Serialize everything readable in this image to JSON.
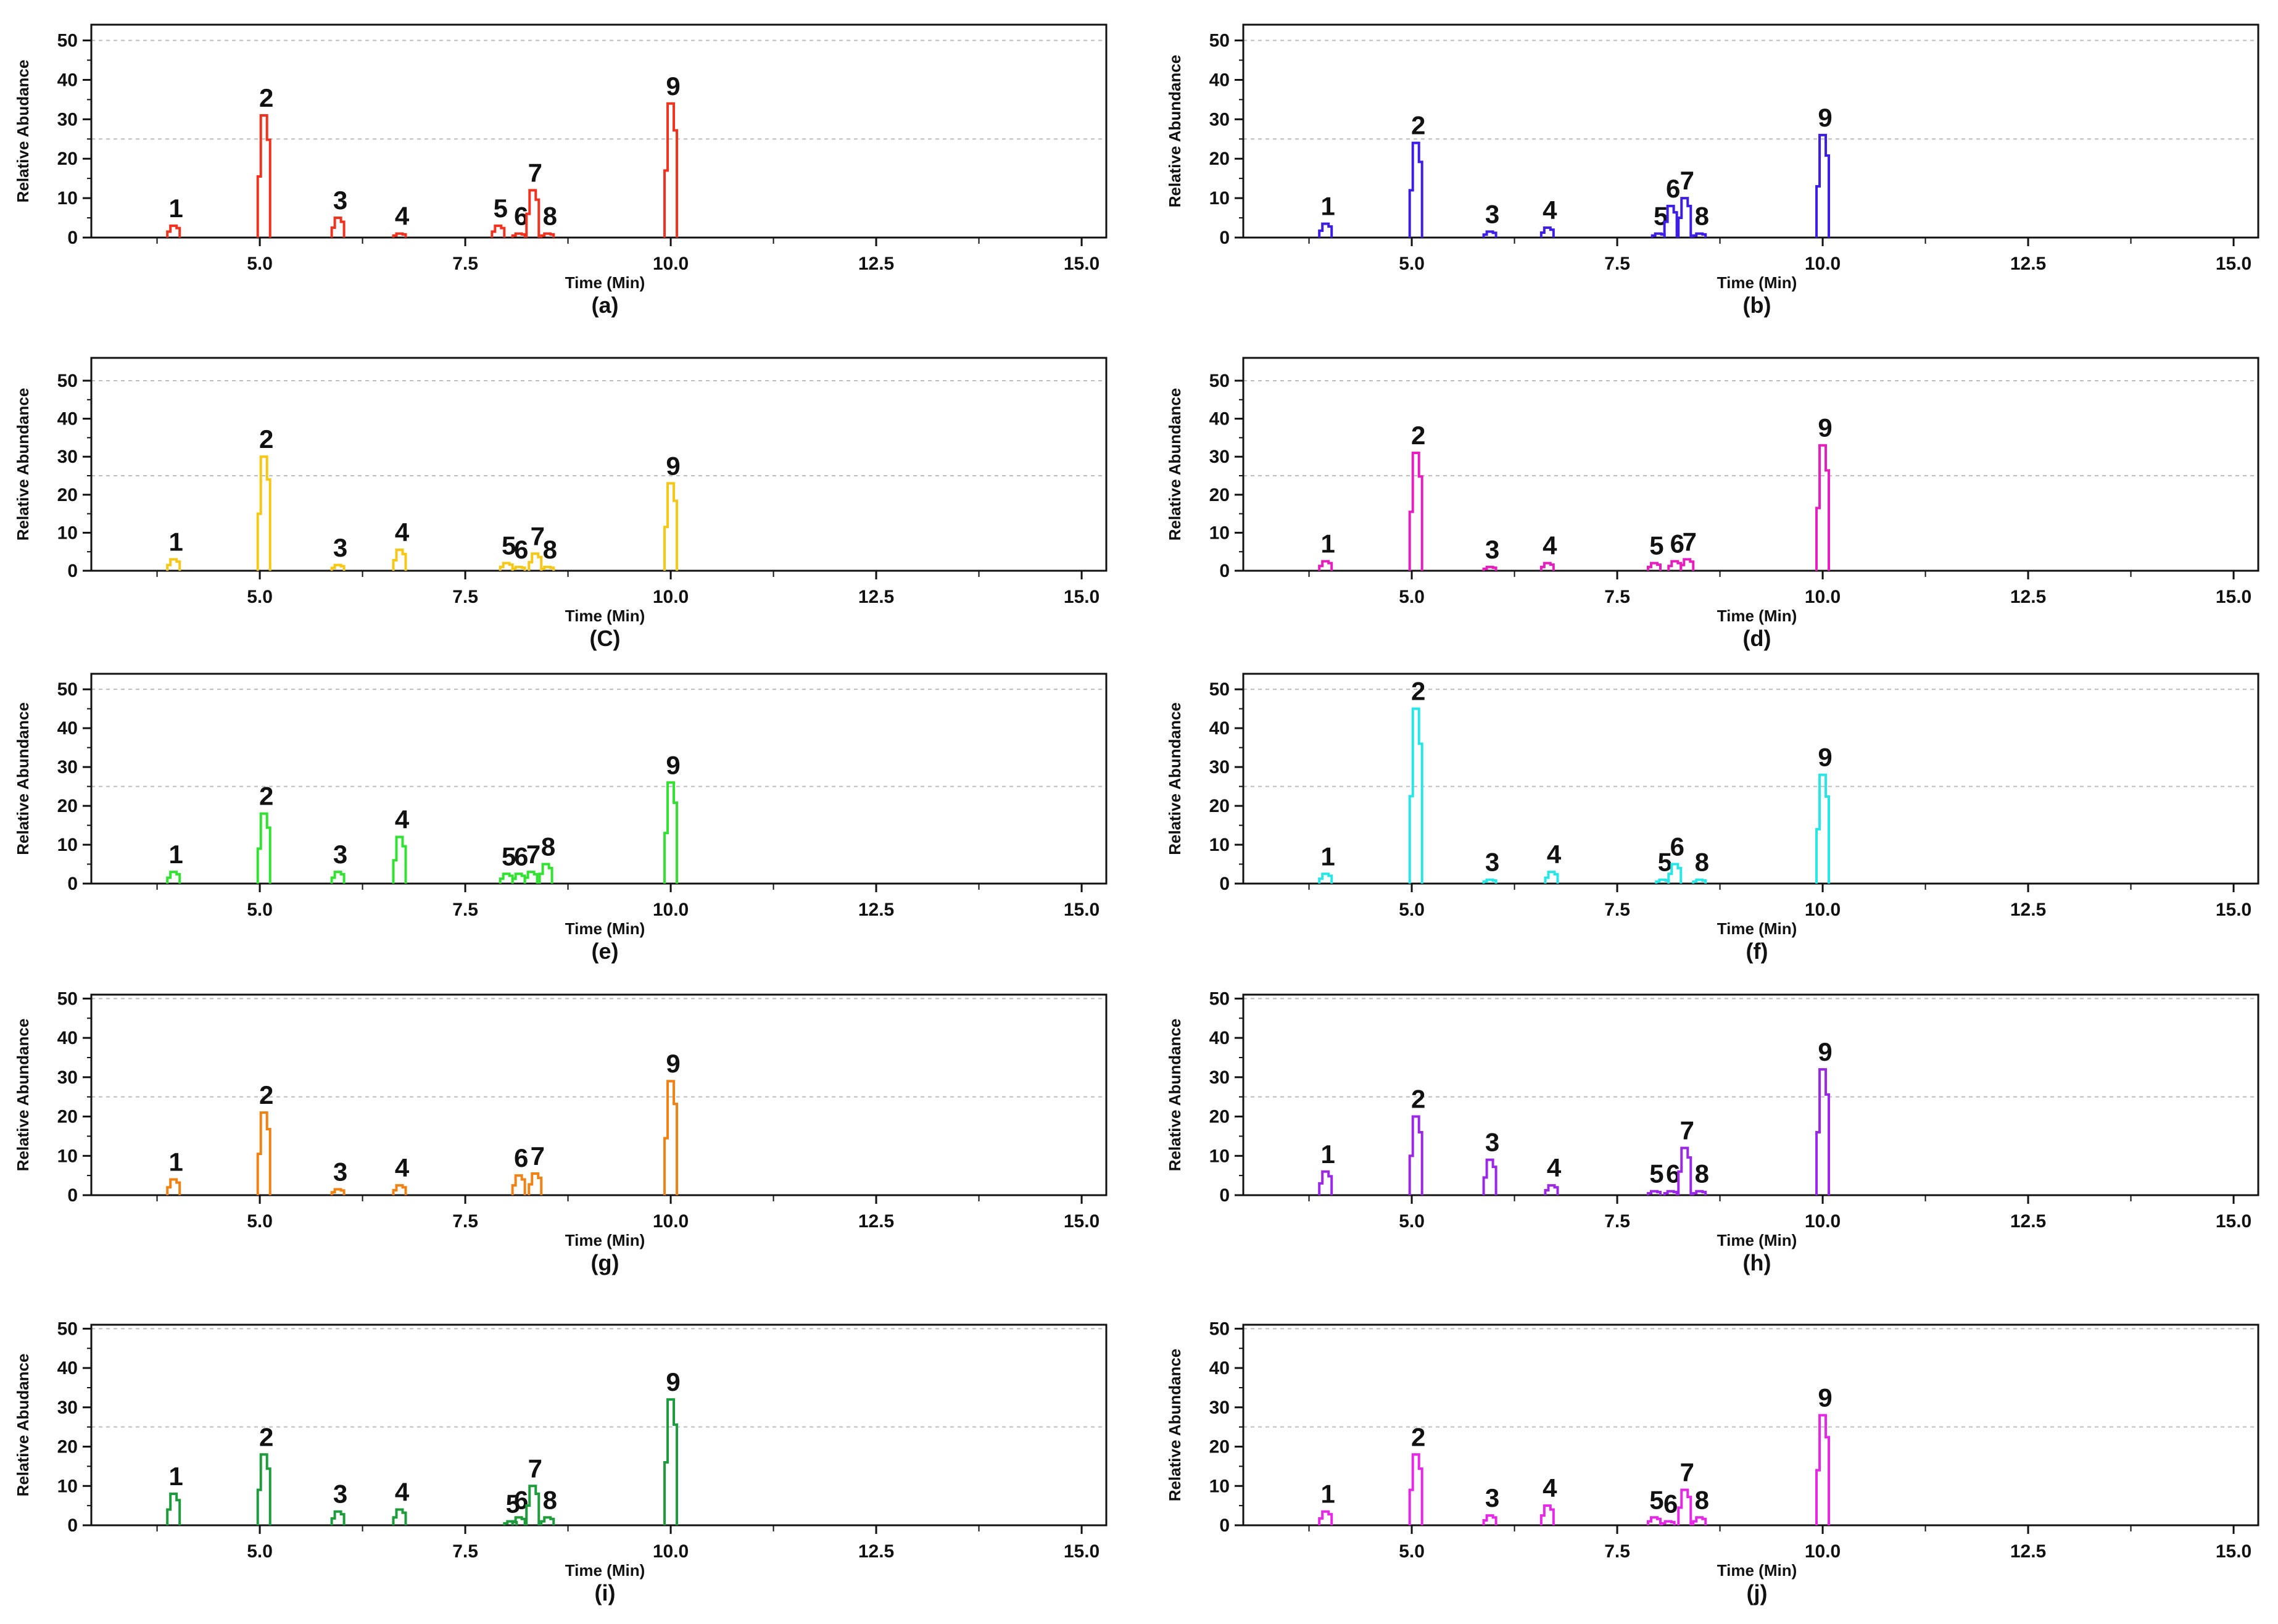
{
  "chart_data": [
    {
      "type": "line",
      "label": "(a)",
      "color": "#f0321e",
      "xlabel": "Time (Min)",
      "ylabel": "Relative Abudance",
      "xticks": [
        "5.0",
        "7.5",
        "10.0",
        "12.5",
        "15.0"
      ],
      "ylim": [
        0,
        50
      ],
      "yticks": [
        0,
        10,
        20,
        30,
        40,
        50
      ],
      "grid": [
        25,
        50
      ],
      "peaks": [
        {
          "label": "1",
          "time": 3.95,
          "value": 3
        },
        {
          "label": "2",
          "time": 5.05,
          "value": 31
        },
        {
          "label": "3",
          "time": 5.95,
          "value": 5
        },
        {
          "label": "4",
          "time": 6.7,
          "value": 1
        },
        {
          "label": "5",
          "time": 7.9,
          "value": 3
        },
        {
          "label": "6",
          "time": 8.15,
          "value": 1
        },
        {
          "label": "7",
          "time": 8.32,
          "value": 12
        },
        {
          "label": "8",
          "time": 8.5,
          "value": 1
        },
        {
          "label": "9",
          "time": 10.0,
          "value": 34
        }
      ]
    },
    {
      "type": "line",
      "label": "(b)",
      "color": "#3c1ee6",
      "xlabel": "Time (Min)",
      "ylabel": "Relative Abundance",
      "xticks": [
        "5.0",
        "7.5",
        "10.0",
        "12.5",
        "15.0"
      ],
      "ylim": [
        0,
        50
      ],
      "yticks": [
        0,
        10,
        20,
        30,
        40,
        50
      ],
      "grid": [
        25,
        50
      ],
      "peaks": [
        {
          "label": "1",
          "time": 3.95,
          "value": 3.5
        },
        {
          "label": "2",
          "time": 5.05,
          "value": 24
        },
        {
          "label": "3",
          "time": 5.95,
          "value": 1.5
        },
        {
          "label": "4",
          "time": 6.65,
          "value": 2.5
        },
        {
          "label": "5",
          "time": 8.0,
          "value": 1
        },
        {
          "label": "6",
          "time": 8.15,
          "value": 8
        },
        {
          "label": "7",
          "time": 8.32,
          "value": 10
        },
        {
          "label": "8",
          "time": 8.5,
          "value": 1
        },
        {
          "label": "9",
          "time": 10.0,
          "value": 26
        }
      ]
    },
    {
      "type": "line",
      "label": "(C)",
      "color": "#f5c815",
      "xlabel": "Time (Min)",
      "ylabel": "Relative Abundance",
      "xticks": [
        "5.0",
        "7.5",
        "10.0",
        "12.5",
        "15.0"
      ],
      "ylim": [
        0,
        50
      ],
      "yticks": [
        0,
        10,
        20,
        30,
        40,
        50
      ],
      "grid": [
        25,
        50
      ],
      "peaks": [
        {
          "label": "1",
          "time": 3.95,
          "value": 3
        },
        {
          "label": "2",
          "time": 5.05,
          "value": 30
        },
        {
          "label": "3",
          "time": 5.95,
          "value": 1.5
        },
        {
          "label": "4",
          "time": 6.7,
          "value": 5.5
        },
        {
          "label": "5",
          "time": 8.0,
          "value": 2
        },
        {
          "label": "6",
          "time": 8.15,
          "value": 1
        },
        {
          "label": "7",
          "time": 8.35,
          "value": 4.5
        },
        {
          "label": "8",
          "time": 8.5,
          "value": 1
        },
        {
          "label": "9",
          "time": 10.0,
          "value": 23
        }
      ]
    },
    {
      "type": "line",
      "label": "(d)",
      "color": "#e61ebe",
      "xlabel": "Time (Min)",
      "ylabel": "Relative Abundance",
      "xticks": [
        "5.0",
        "7.5",
        "10.0",
        "12.5",
        "15.0"
      ],
      "ylim": [
        0,
        50
      ],
      "yticks": [
        0,
        10,
        20,
        30,
        40,
        50
      ],
      "grid": [
        25,
        50
      ],
      "peaks": [
        {
          "label": "1",
          "time": 3.95,
          "value": 2.5
        },
        {
          "label": "2",
          "time": 5.05,
          "value": 31
        },
        {
          "label": "3",
          "time": 5.95,
          "value": 1
        },
        {
          "label": "4",
          "time": 6.65,
          "value": 2
        },
        {
          "label": "5",
          "time": 7.95,
          "value": 2
        },
        {
          "label": "6",
          "time": 8.2,
          "value": 2.5
        },
        {
          "label": "7",
          "time": 8.35,
          "value": 3
        },
        {
          "label": "9",
          "time": 10.0,
          "value": 33
        }
      ]
    },
    {
      "type": "line",
      "label": "(e)",
      "color": "#32e132",
      "xlabel": "Time (Min)",
      "ylabel": "Relative Abundance",
      "xticks": [
        "5.0",
        "7.5",
        "10.0",
        "12.5",
        "15.0"
      ],
      "ylim": [
        0,
        50
      ],
      "yticks": [
        0,
        10,
        20,
        30,
        40,
        50
      ],
      "grid": [
        25,
        50
      ],
      "peaks": [
        {
          "label": "1",
          "time": 3.95,
          "value": 3
        },
        {
          "label": "2",
          "time": 5.05,
          "value": 18
        },
        {
          "label": "3",
          "time": 5.95,
          "value": 3
        },
        {
          "label": "4",
          "time": 6.7,
          "value": 12
        },
        {
          "label": "5",
          "time": 8.0,
          "value": 2.5
        },
        {
          "label": "6",
          "time": 8.15,
          "value": 2.5
        },
        {
          "label": "7",
          "time": 8.3,
          "value": 3
        },
        {
          "label": "8",
          "time": 8.48,
          "value": 5
        },
        {
          "label": "9",
          "time": 10.0,
          "value": 26
        }
      ]
    },
    {
      "type": "line",
      "label": "(f)",
      "color": "#28e6e6",
      "xlabel": "Time (Min)",
      "ylabel": "Relative Abundance",
      "xticks": [
        "5.0",
        "7.5",
        "10.0",
        "12.5",
        "15.0"
      ],
      "ylim": [
        0,
        50
      ],
      "yticks": [
        0,
        10,
        20,
        30,
        40,
        50
      ],
      "grid": [
        25,
        50
      ],
      "peaks": [
        {
          "label": "1",
          "time": 3.95,
          "value": 2.5
        },
        {
          "label": "2",
          "time": 5.05,
          "value": 45
        },
        {
          "label": "3",
          "time": 5.95,
          "value": 1
        },
        {
          "label": "4",
          "time": 6.7,
          "value": 3
        },
        {
          "label": "5",
          "time": 8.05,
          "value": 1
        },
        {
          "label": "6",
          "time": 8.2,
          "value": 5
        },
        {
          "label": "8",
          "time": 8.5,
          "value": 1
        },
        {
          "label": "9",
          "time": 10.0,
          "value": 28
        }
      ]
    },
    {
      "type": "line",
      "label": "(g)",
      "color": "#f08214",
      "xlabel": "Time (Min)",
      "ylabel": "Relative Abundance",
      "xticks": [
        "5.0",
        "7.5",
        "10.0",
        "12.5",
        "15.0"
      ],
      "ylim": [
        0,
        50
      ],
      "yticks": [
        0,
        10,
        20,
        30,
        40,
        50
      ],
      "grid": [
        25,
        50
      ],
      "peaks": [
        {
          "label": "1",
          "time": 3.95,
          "value": 4
        },
        {
          "label": "2",
          "time": 5.05,
          "value": 21
        },
        {
          "label": "3",
          "time": 5.95,
          "value": 1.5
        },
        {
          "label": "4",
          "time": 6.7,
          "value": 2.5
        },
        {
          "label": "6",
          "time": 8.15,
          "value": 5
        },
        {
          "label": "7",
          "time": 8.35,
          "value": 5.5
        },
        {
          "label": "9",
          "time": 10.0,
          "value": 29
        }
      ]
    },
    {
      "type": "line",
      "label": "(h)",
      "color": "#9b28e6",
      "xlabel": "Time (Min)",
      "ylabel": "Relative Abundance",
      "xticks": [
        "5.0",
        "7.5",
        "10.0",
        "12.5",
        "15.0"
      ],
      "ylim": [
        0,
        50
      ],
      "yticks": [
        0,
        10,
        20,
        30,
        40,
        50
      ],
      "grid": [
        25,
        50
      ],
      "peaks": [
        {
          "label": "1",
          "time": 3.95,
          "value": 6
        },
        {
          "label": "2",
          "time": 5.05,
          "value": 20
        },
        {
          "label": "3",
          "time": 5.95,
          "value": 9
        },
        {
          "label": "4",
          "time": 6.7,
          "value": 2.5
        },
        {
          "label": "5",
          "time": 7.95,
          "value": 1
        },
        {
          "label": "6",
          "time": 8.15,
          "value": 1
        },
        {
          "label": "7",
          "time": 8.32,
          "value": 12
        },
        {
          "label": "8",
          "time": 8.5,
          "value": 1
        },
        {
          "label": "9",
          "time": 10.0,
          "value": 32
        }
      ]
    },
    {
      "type": "line",
      "label": "(i)",
      "color": "#1e9b3c",
      "xlabel": "Time (Min)",
      "ylabel": "Relative Abudance",
      "xticks": [
        "5.0",
        "7.5",
        "10.0",
        "12.5",
        "15.0"
      ],
      "ylim": [
        0,
        50
      ],
      "yticks": [
        0,
        10,
        20,
        30,
        40,
        50
      ],
      "grid": [
        25,
        50
      ],
      "peaks": [
        {
          "label": "1",
          "time": 3.95,
          "value": 8
        },
        {
          "label": "2",
          "time": 5.05,
          "value": 18
        },
        {
          "label": "3",
          "time": 5.95,
          "value": 3.5
        },
        {
          "label": "4",
          "time": 6.7,
          "value": 4
        },
        {
          "label": "5",
          "time": 8.05,
          "value": 1
        },
        {
          "label": "6",
          "time": 8.15,
          "value": 2
        },
        {
          "label": "7",
          "time": 8.32,
          "value": 10
        },
        {
          "label": "8",
          "time": 8.5,
          "value": 2
        },
        {
          "label": "9",
          "time": 10.0,
          "value": 32
        }
      ]
    },
    {
      "type": "line",
      "label": "(j)",
      "color": "#e628e6",
      "xlabel": "Time (Min)",
      "ylabel": "Relative Abundance",
      "xticks": [
        "5.0",
        "7.5",
        "10.0",
        "12.5",
        "15.0"
      ],
      "ylim": [
        0,
        50
      ],
      "yticks": [
        0,
        10,
        20,
        30,
        40,
        50
      ],
      "grid": [
        25,
        50
      ],
      "peaks": [
        {
          "label": "1",
          "time": 3.95,
          "value": 3.5
        },
        {
          "label": "2",
          "time": 5.05,
          "value": 18
        },
        {
          "label": "3",
          "time": 5.95,
          "value": 2.5
        },
        {
          "label": "4",
          "time": 6.65,
          "value": 5
        },
        {
          "label": "5",
          "time": 7.95,
          "value": 2
        },
        {
          "label": "6",
          "time": 8.12,
          "value": 1
        },
        {
          "label": "7",
          "time": 8.32,
          "value": 9
        },
        {
          "label": "8",
          "time": 8.5,
          "value": 2
        },
        {
          "label": "9",
          "time": 10.0,
          "value": 28
        }
      ]
    }
  ]
}
